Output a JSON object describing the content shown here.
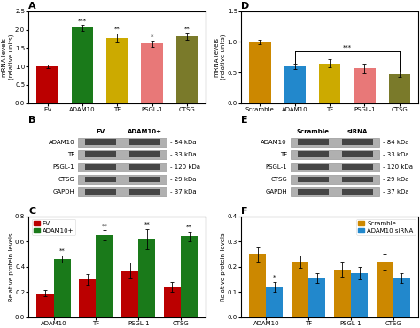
{
  "chart_data": [
    {
      "type": "bar",
      "title": "A",
      "categories": [
        "EV",
        "ADAM10",
        "TF",
        "PSGL-1",
        "CTSG"
      ],
      "values": [
        1.0,
        2.05,
        1.78,
        1.62,
        1.82
      ],
      "errors": [
        0.05,
        0.08,
        0.12,
        0.08,
        0.1
      ],
      "colors": [
        "#bb0000",
        "#1a7a1a",
        "#ccaa00",
        "#e87878",
        "#7a7a2a"
      ],
      "y_label": "mRNA levels\n(relative units)",
      "ylim": [
        0,
        2.5
      ],
      "yticks": [
        {
          "value": 0,
          "label": "0.0"
        },
        0.5,
        {
          "value": 1,
          "label": "1.0"
        },
        1.5,
        {
          "value": 2,
          "label": "2.0"
        },
        2.5
      ],
      "annotations": [
        {
          "category": "ADAM10",
          "text": "***"
        },
        {
          "category": "TF",
          "text": "**"
        },
        {
          "category": "PSGL-1",
          "text": "*"
        },
        {
          "category": "CTSG",
          "text": "**"
        }
      ]
    },
    {
      "type": "bar",
      "title": "D",
      "categories": [
        "Scramble",
        "ADAM10",
        "TF",
        "PSGL-1",
        "CTSG"
      ],
      "values": [
        1.0,
        0.6,
        0.65,
        0.57,
        0.47
      ],
      "errors": [
        0.04,
        0.04,
        0.06,
        0.08,
        0.04
      ],
      "colors": [
        "#cc8800",
        "#2288cc",
        "#ccaa00",
        "#e87878",
        "#7a7a2a"
      ],
      "y_label": "mRNA levels\n(relative units)",
      "ylim": [
        0,
        1.5
      ],
      "yticks": [
        {
          "value": 0,
          "label": "0.0"
        },
        0.5,
        {
          "value": 1,
          "label": "1.0"
        },
        1.5
      ],
      "annotations": [
        {
          "from": "ADAM10",
          "to": "CTSG",
          "y": 0.85,
          "text": "***"
        }
      ]
    },
    {
      "type": "blot",
      "title": "B",
      "categories": [
        "ADAM10",
        "TF",
        "PSGL-1",
        "CTSG",
        "GAPDH"
      ],
      "columns": [
        "EV",
        "ADAM10+"
      ],
      "color": "#222222",
      "box_color": "#b0b0b0",
      "annotations": [
        {
          "category": "ADAM10",
          "text": "- 84 kDa"
        },
        {
          "category": "TF",
          "text": "- 33 kDa"
        },
        {
          "category": "PSGL-1",
          "text": "- 120 kDa"
        },
        {
          "category": "CTSG",
          "text": "- 29 kDa"
        },
        {
          "category": "GAPDH",
          "text": "- 37 kDa"
        }
      ]
    },
    {
      "type": "blot",
      "title": "E",
      "categories": [
        "ADAM10",
        "TF",
        "PSGL-1",
        "CTSG",
        "GAPDH"
      ],
      "columns": [
        "Scramble",
        "siRNA"
      ],
      "color": "#222222",
      "box_color": "#b0b0b0",
      "annotations": [
        {
          "category": "ADAM10",
          "text": "- 84 kDa"
        },
        {
          "category": "TF",
          "text": "- 33 kDa"
        },
        {
          "category": "PSGL-1",
          "text": "- 120 kDa"
        },
        {
          "category": "CTSG",
          "text": "- 29 kDa"
        },
        {
          "category": "GAPDH",
          "text": "- 37 kDa"
        }
      ]
    },
    {
      "type": "bar",
      "title": "C",
      "categories": [
        "ADAM10",
        "TF",
        "PSGL-1",
        "CTSG"
      ],
      "series": [
        {
          "name": "EV",
          "color": "#bb0000",
          "values": [
            0.19,
            0.3,
            0.37,
            0.24
          ],
          "errors": [
            0.025,
            0.04,
            0.06,
            0.04
          ]
        },
        {
          "name": "ADAM10+",
          "color": "#1a7a1a",
          "values": [
            0.46,
            0.65,
            0.62,
            0.64
          ],
          "errors": [
            0.03,
            0.04,
            0.08,
            0.04
          ]
        }
      ],
      "y_label": "Relative protein levels",
      "ylim": [
        0,
        0.8
      ],
      "yticks": [
        {
          "value": 0,
          "label": "0.0"
        },
        0.2,
        0.4,
        0.6,
        0.8
      ],
      "legend": "upper left",
      "annotations": [
        {
          "category": "ADAM10",
          "series": "ADAM10+",
          "text": "**"
        },
        {
          "category": "TF",
          "series": "ADAM10+",
          "text": "**"
        },
        {
          "category": "PSGL-1",
          "series": "ADAM10+",
          "text": "**"
        },
        {
          "category": "CTSG",
          "series": "ADAM10+",
          "text": "**"
        }
      ]
    },
    {
      "type": "bar",
      "title": "F",
      "categories": [
        "ADAM10",
        "TF",
        "PSGL-1",
        "CTSG"
      ],
      "series": [
        {
          "name": "Scramble",
          "color": "#cc8800",
          "values": [
            0.25,
            0.22,
            0.19,
            0.22
          ],
          "errors": [
            0.03,
            0.025,
            0.03,
            0.03
          ]
        },
        {
          "name": "ADAM10 siRNA",
          "color": "#2288cc",
          "values": [
            0.12,
            0.155,
            0.175,
            0.155
          ],
          "errors": [
            0.02,
            0.02,
            0.025,
            0.02
          ]
        }
      ],
      "y_label": "Relative protein levels",
      "ylim": [
        0,
        0.4
      ],
      "yticks": [
        {
          "value": 0,
          "label": "0.0"
        },
        0.1,
        0.2,
        0.3,
        0.4
      ],
      "legend": "upper right",
      "annotations": [
        {
          "category": "ADAM10",
          "series": "ADAM10 siRNA",
          "text": "*"
        }
      ]
    }
  ]
}
